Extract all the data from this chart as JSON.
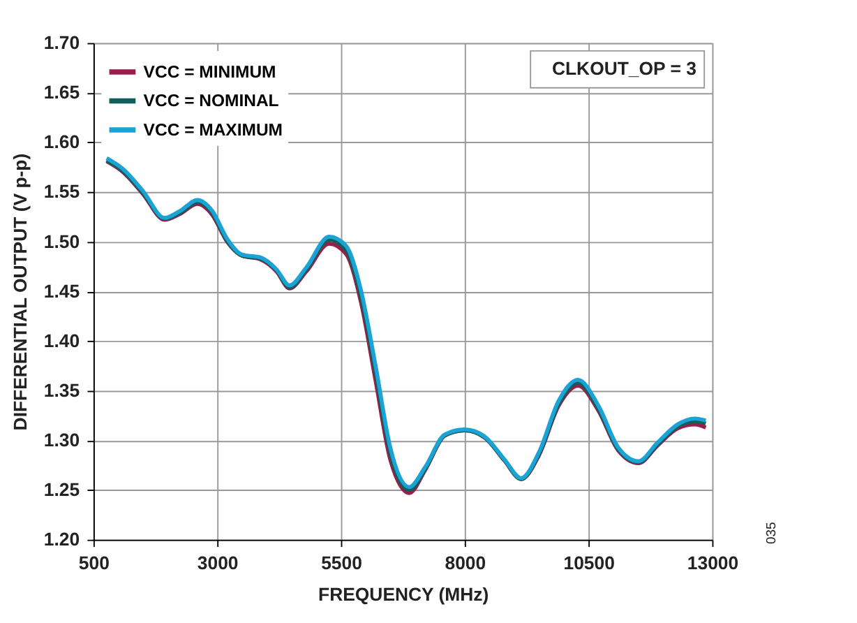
{
  "chart_data": {
    "type": "line",
    "xlabel": "FREQUENCY (MHz)",
    "ylabel": "DIFFERENTIAL OUTPUT  (V p-p)",
    "x": [
      766,
      1100,
      1500,
      1936,
      2250,
      2600,
      2900,
      3200,
      3500,
      3880,
      4200,
      4460,
      4800,
      5260,
      5600,
      5900,
      6200,
      6500,
      6880,
      7200,
      7600,
      8000,
      8400,
      8800,
      9140,
      9500,
      9900,
      10290,
      10700,
      11100,
      11510,
      11900,
      12300,
      12650,
      12870
    ],
    "series": [
      {
        "name": "VCC = MINIMUM",
        "color": "#9c1c4c",
        "values": [
          1.581,
          1.57,
          1.548,
          1.522,
          1.528,
          1.538,
          1.527,
          1.5,
          1.486,
          1.482,
          1.47,
          1.453,
          1.47,
          1.498,
          1.488,
          1.44,
          1.36,
          1.28,
          1.247,
          1.27,
          1.305,
          1.31,
          1.303,
          1.28,
          1.261,
          1.285,
          1.335,
          1.355,
          1.33,
          1.29,
          1.277,
          1.295,
          1.312,
          1.316,
          1.313
        ]
      },
      {
        "name": "VCC = NOMINAL",
        "color": "#0f5f5c",
        "values": [
          1.582,
          1.571,
          1.549,
          1.523,
          1.529,
          1.54,
          1.529,
          1.501,
          1.486,
          1.483,
          1.471,
          1.454,
          1.472,
          1.502,
          1.492,
          1.446,
          1.368,
          1.286,
          1.25,
          1.271,
          1.305,
          1.31,
          1.303,
          1.28,
          1.261,
          1.286,
          1.337,
          1.358,
          1.332,
          1.291,
          1.278,
          1.296,
          1.314,
          1.319,
          1.317
        ]
      },
      {
        "name": "VCC = MAXIMUM",
        "color": "#1ba3d6",
        "values": [
          1.584,
          1.573,
          1.551,
          1.524,
          1.531,
          1.542,
          1.531,
          1.503,
          1.487,
          1.484,
          1.472,
          1.456,
          1.474,
          1.505,
          1.496,
          1.452,
          1.375,
          1.292,
          1.253,
          1.273,
          1.306,
          1.311,
          1.304,
          1.281,
          1.262,
          1.288,
          1.34,
          1.361,
          1.335,
          1.293,
          1.279,
          1.298,
          1.316,
          1.322,
          1.32
        ]
      }
    ],
    "xlim": [
      500,
      13000
    ],
    "xticks": [
      500,
      3000,
      5500,
      8000,
      10500,
      13000
    ],
    "ylim": [
      1.2,
      1.7
    ],
    "yticks": [
      {
        "value": 1.2,
        "label": "1.20"
      },
      {
        "value": 1.25,
        "label": "1.25"
      },
      {
        "value": 1.3,
        "label": "1.30"
      },
      {
        "value": 1.35,
        "label": "1.35"
      },
      {
        "value": 1.4,
        "label": "1.40"
      },
      {
        "value": 1.45,
        "label": "1.45"
      },
      {
        "value": 1.5,
        "label": "1.50"
      },
      {
        "value": 1.55,
        "label": "1.55"
      },
      {
        "value": 1.6,
        "label": "1.60"
      },
      {
        "value": 1.65,
        "label": "1.65"
      },
      {
        "value": 1.7,
        "label": "1.70"
      }
    ],
    "grid": true,
    "legend": "top left",
    "line_style": "solid",
    "marker": "none",
    "annotations": [
      "CLKOUT_OP = 3",
      "035"
    ]
  }
}
